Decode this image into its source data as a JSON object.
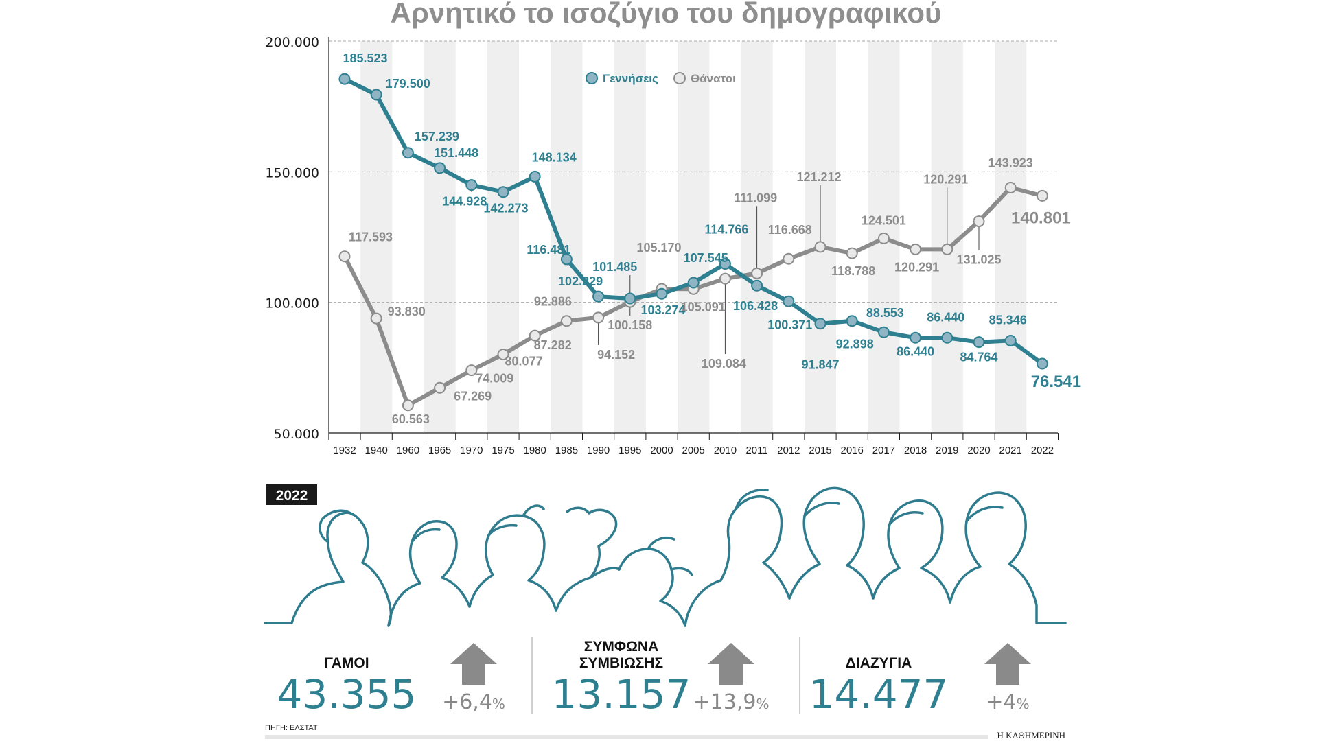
{
  "chart_data": {
    "type": "line",
    "title": "Αρνητικό το ισοζύγιο του δημογραφικού",
    "categories": [
      "1932",
      "1940",
      "1960",
      "1965",
      "1970",
      "1975",
      "1980",
      "1985",
      "1990",
      "1995",
      "2000",
      "2005",
      "2010",
      "2011",
      "2012",
      "2015",
      "2016",
      "2017",
      "2018",
      "2019",
      "2020",
      "2021",
      "2022"
    ],
    "y_ticks": [
      "200.000",
      "150.000",
      "100.000",
      "50.000"
    ],
    "y_tick_values": [
      200000,
      150000,
      100000,
      50000
    ],
    "ylim": [
      50000,
      200000
    ],
    "grid": "horizontal dashed",
    "legend_placement": "top-center",
    "series": [
      {
        "name": "Γεννήσεις",
        "color": "#2e8091",
        "marker_color": "#8fb5c4",
        "values": [
          185523,
          179500,
          157239,
          151448,
          144928,
          142273,
          148134,
          116481,
          102229,
          101485,
          103274,
          107545,
          114766,
          106428,
          100371,
          91847,
          92898,
          88553,
          86440,
          86440,
          84764,
          85346,
          76541
        ],
        "labels": [
          "185.523",
          "179.500",
          "157.239",
          "151.448",
          "144.928",
          "142.273",
          "148.134",
          "116.481",
          "102.229",
          "101.485",
          "103.274",
          "107.545",
          "114.766",
          "106.428",
          "100.371",
          "91.847",
          "92.898",
          "88.553",
          "86.440",
          "86.440",
          "84.764",
          "85.346",
          "76.541"
        ]
      },
      {
        "name": "Θάνατοι",
        "color": "#8c8c8c",
        "marker_color": "#e9e9e9",
        "values": [
          117593,
          93830,
          60563,
          67269,
          74009,
          80077,
          87282,
          92886,
          94152,
          100158,
          105170,
          105091,
          109084,
          111099,
          116668,
          121212,
          118788,
          124501,
          120291,
          120291,
          131025,
          143923,
          140801
        ],
        "labels": [
          "117.593",
          "93.830",
          "60.563",
          "67.269",
          "74.009",
          "80.077",
          "87.282",
          "92.886",
          "94.152",
          "100.158",
          "105.170",
          "105.091",
          "109.084",
          "111.099",
          "116.668",
          "121.212",
          "118.788",
          "124.501",
          "120.291",
          "120.291",
          "131.025",
          "143.923",
          "140.801"
        ]
      }
    ]
  },
  "year_badge": "2022",
  "stats": [
    {
      "label_lines": [
        "ΓΑΜΟΙ"
      ],
      "value": "43.355",
      "change_num": "+6,4",
      "change_unit": "%"
    },
    {
      "label_lines": [
        "ΣΥΜΦΩΝΑ",
        "ΣΥΜΒΙΩΣΗΣ"
      ],
      "value": "13.157",
      "change_num": "+13,9",
      "change_unit": "%"
    },
    {
      "label_lines": [
        "ΔΙΑΖΥΓΙΑ"
      ],
      "value": "14.477",
      "change_num": "+4",
      "change_unit": "%"
    }
  ],
  "source": "ΠΗΓΗ: ΕΛΣΤΑΤ",
  "publisher": "Η ΚΑΘΗΜΕΡΙΝΗ",
  "colors": {
    "accent": "#2e8091",
    "gray": "#8c8c8c",
    "arrow": "#8a8a8a",
    "stripe": "#efefef"
  }
}
